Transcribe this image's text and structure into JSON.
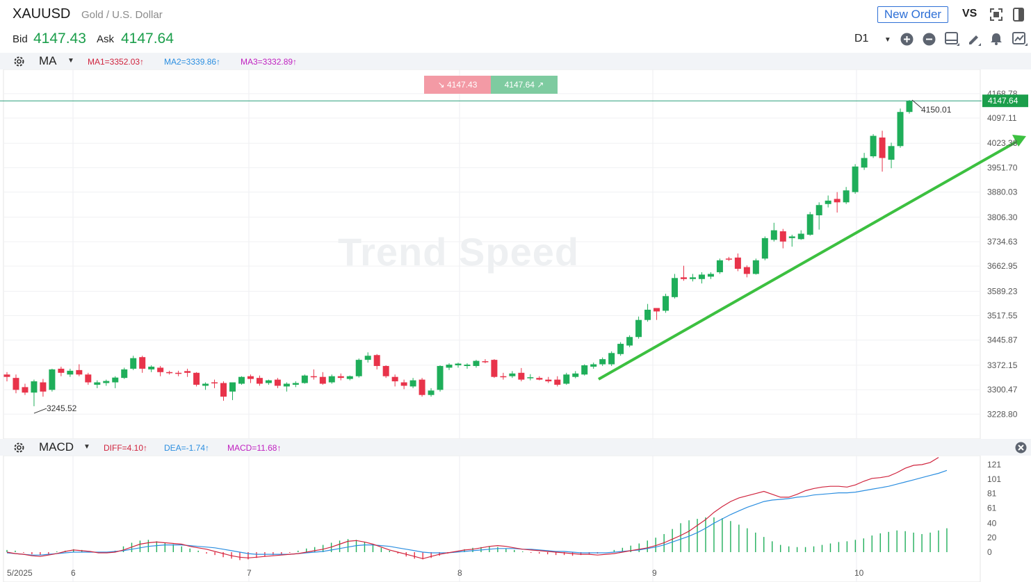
{
  "header": {
    "symbol": "XAUUSD",
    "symbol_name": "Gold / U.S. Dollar",
    "bid_label": "Bid",
    "bid_value": "4147.43",
    "ask_label": "Ask",
    "ask_value": "4147.64",
    "new_order_label": "New Order",
    "vs_label": "VS",
    "timeframe": "D1"
  },
  "ma_bar": {
    "indicator": "MA",
    "ma1": "MA1=3352.03↑",
    "ma2": "MA2=3339.86↑",
    "ma3": "MA3=3332.89↑"
  },
  "macd_bar": {
    "indicator": "MACD",
    "diff": "DIFF=4.10↑",
    "dea": "DEA=-1.74↑",
    "macd": "MACD=11.68↑"
  },
  "price_badges": {
    "sell": "4147.43",
    "buy": "4147.64",
    "sell_icon": "arrow-down-right-icon",
    "buy_icon": "arrow-up-right-icon"
  },
  "watermark": "Trend Speed",
  "colors": {
    "up": "#1fae5a",
    "down": "#e8334a",
    "accent": "#2d6fd6",
    "diff_line": "#d0233d",
    "dea_line": "#2b8ee0",
    "trend_arrow": "#3cc040"
  },
  "chart_data": [
    {
      "type": "candlestick",
      "y_axis_labels": [
        "4168.78",
        "4097.11",
        "4023.38",
        "3951.70",
        "3880.03",
        "3806.30",
        "3734.63",
        "3662.95",
        "3589.23",
        "3517.55",
        "3445.87",
        "3372.15",
        "3300.47",
        "3228.80"
      ],
      "x_axis_labels": [
        "5/2025",
        "6",
        "7",
        "8",
        "9",
        "10"
      ],
      "current_price_label": "4147.64",
      "high_marker": "4150.01",
      "low_marker": "3245.52",
      "ylim": [
        3200,
        4190
      ],
      "candles": [
        {
          "o": 3345,
          "h": 3352,
          "l": 3325,
          "c": 3338
        },
        {
          "o": 3335,
          "h": 3345,
          "l": 3290,
          "c": 3300
        },
        {
          "o": 3308,
          "h": 3318,
          "l": 3285,
          "c": 3292
        },
        {
          "o": 3292,
          "h": 3330,
          "l": 3252,
          "c": 3325
        },
        {
          "o": 3322,
          "h": 3332,
          "l": 3280,
          "c": 3295
        },
        {
          "o": 3300,
          "h": 3362,
          "l": 3295,
          "c": 3360
        },
        {
          "o": 3362,
          "h": 3368,
          "l": 3340,
          "c": 3350
        },
        {
          "o": 3345,
          "h": 3362,
          "l": 3338,
          "c": 3356
        },
        {
          "o": 3358,
          "h": 3375,
          "l": 3340,
          "c": 3345
        },
        {
          "o": 3345,
          "h": 3350,
          "l": 3315,
          "c": 3322
        },
        {
          "o": 3315,
          "h": 3328,
          "l": 3305,
          "c": 3322
        },
        {
          "o": 3320,
          "h": 3330,
          "l": 3312,
          "c": 3326
        },
        {
          "o": 3322,
          "h": 3340,
          "l": 3305,
          "c": 3336
        },
        {
          "o": 3335,
          "h": 3365,
          "l": 3332,
          "c": 3360
        },
        {
          "o": 3362,
          "h": 3400,
          "l": 3358,
          "c": 3393
        },
        {
          "o": 3396,
          "h": 3400,
          "l": 3350,
          "c": 3362
        },
        {
          "o": 3360,
          "h": 3372,
          "l": 3352,
          "c": 3368
        },
        {
          "o": 3365,
          "h": 3370,
          "l": 3340,
          "c": 3352
        },
        {
          "o": 3352,
          "h": 3356,
          "l": 3345,
          "c": 3350
        },
        {
          "o": 3350,
          "h": 3356,
          "l": 3340,
          "c": 3348
        },
        {
          "o": 3355,
          "h": 3362,
          "l": 3338,
          "c": 3350
        },
        {
          "o": 3350,
          "h": 3352,
          "l": 3310,
          "c": 3315
        },
        {
          "o": 3312,
          "h": 3322,
          "l": 3300,
          "c": 3318
        },
        {
          "o": 3322,
          "h": 3330,
          "l": 3305,
          "c": 3320
        },
        {
          "o": 3320,
          "h": 3325,
          "l": 3268,
          "c": 3280
        },
        {
          "o": 3295,
          "h": 3320,
          "l": 3270,
          "c": 3322
        },
        {
          "o": 3318,
          "h": 3340,
          "l": 3315,
          "c": 3338
        },
        {
          "o": 3340,
          "h": 3345,
          "l": 3320,
          "c": 3332
        },
        {
          "o": 3335,
          "h": 3342,
          "l": 3312,
          "c": 3318
        },
        {
          "o": 3320,
          "h": 3330,
          "l": 3315,
          "c": 3328
        },
        {
          "o": 3330,
          "h": 3335,
          "l": 3305,
          "c": 3312
        },
        {
          "o": 3310,
          "h": 3322,
          "l": 3295,
          "c": 3318
        },
        {
          "o": 3315,
          "h": 3325,
          "l": 3308,
          "c": 3320
        },
        {
          "o": 3320,
          "h": 3345,
          "l": 3318,
          "c": 3342
        },
        {
          "o": 3340,
          "h": 3360,
          "l": 3330,
          "c": 3338
        },
        {
          "o": 3338,
          "h": 3352,
          "l": 3315,
          "c": 3318
        },
        {
          "o": 3322,
          "h": 3345,
          "l": 3318,
          "c": 3340
        },
        {
          "o": 3340,
          "h": 3348,
          "l": 3328,
          "c": 3335
        },
        {
          "o": 3332,
          "h": 3342,
          "l": 3328,
          "c": 3340
        },
        {
          "o": 3340,
          "h": 3392,
          "l": 3336,
          "c": 3388
        },
        {
          "o": 3388,
          "h": 3410,
          "l": 3380,
          "c": 3400
        },
        {
          "o": 3402,
          "h": 3405,
          "l": 3360,
          "c": 3370
        },
        {
          "o": 3370,
          "h": 3372,
          "l": 3335,
          "c": 3340
        },
        {
          "o": 3338,
          "h": 3345,
          "l": 3310,
          "c": 3325
        },
        {
          "o": 3322,
          "h": 3330,
          "l": 3302,
          "c": 3312
        },
        {
          "o": 3310,
          "h": 3335,
          "l": 3305,
          "c": 3328
        },
        {
          "o": 3330,
          "h": 3335,
          "l": 3280,
          "c": 3285
        },
        {
          "o": 3285,
          "h": 3305,
          "l": 3280,
          "c": 3298
        },
        {
          "o": 3300,
          "h": 3372,
          "l": 3295,
          "c": 3370
        },
        {
          "o": 3365,
          "h": 3378,
          "l": 3358,
          "c": 3374
        },
        {
          "o": 3372,
          "h": 3380,
          "l": 3365,
          "c": 3377
        },
        {
          "o": 3370,
          "h": 3378,
          "l": 3362,
          "c": 3374
        },
        {
          "o": 3370,
          "h": 3388,
          "l": 3365,
          "c": 3385
        },
        {
          "o": 3384,
          "h": 3390,
          "l": 3378,
          "c": 3382
        },
        {
          "o": 3388,
          "h": 3390,
          "l": 3335,
          "c": 3338
        },
        {
          "o": 3340,
          "h": 3350,
          "l": 3330,
          "c": 3337
        },
        {
          "o": 3340,
          "h": 3355,
          "l": 3335,
          "c": 3348
        },
        {
          "o": 3350,
          "h": 3364,
          "l": 3325,
          "c": 3330
        },
        {
          "o": 3335,
          "h": 3346,
          "l": 3328,
          "c": 3337
        },
        {
          "o": 3335,
          "h": 3340,
          "l": 3328,
          "c": 3330
        },
        {
          "o": 3330,
          "h": 3338,
          "l": 3320,
          "c": 3325
        },
        {
          "o": 3330,
          "h": 3340,
          "l": 3310,
          "c": 3315
        },
        {
          "o": 3318,
          "h": 3350,
          "l": 3315,
          "c": 3345
        },
        {
          "o": 3338,
          "h": 3355,
          "l": 3334,
          "c": 3348
        },
        {
          "o": 3345,
          "h": 3375,
          "l": 3342,
          "c": 3372
        },
        {
          "o": 3368,
          "h": 3380,
          "l": 3362,
          "c": 3375
        },
        {
          "o": 3375,
          "h": 3395,
          "l": 3370,
          "c": 3390
        },
        {
          "o": 3375,
          "h": 3413,
          "l": 3370,
          "c": 3408
        },
        {
          "o": 3405,
          "h": 3440,
          "l": 3400,
          "c": 3435
        },
        {
          "o": 3430,
          "h": 3460,
          "l": 3425,
          "c": 3455
        },
        {
          "o": 3455,
          "h": 3515,
          "l": 3450,
          "c": 3505
        },
        {
          "o": 3505,
          "h": 3552,
          "l": 3500,
          "c": 3535
        },
        {
          "o": 3540,
          "h": 3540,
          "l": 3505,
          "c": 3530
        },
        {
          "o": 3532,
          "h": 3582,
          "l": 3526,
          "c": 3575
        },
        {
          "o": 3572,
          "h": 3640,
          "l": 3568,
          "c": 3628
        },
        {
          "o": 3630,
          "h": 3664,
          "l": 3620,
          "c": 3625
        },
        {
          "o": 3625,
          "h": 3640,
          "l": 3618,
          "c": 3630
        },
        {
          "o": 3625,
          "h": 3645,
          "l": 3612,
          "c": 3638
        },
        {
          "o": 3632,
          "h": 3645,
          "l": 3625,
          "c": 3640
        },
        {
          "o": 3645,
          "h": 3685,
          "l": 3640,
          "c": 3680
        },
        {
          "o": 3685,
          "h": 3690,
          "l": 3678,
          "c": 3682
        },
        {
          "o": 3688,
          "h": 3700,
          "l": 3648,
          "c": 3655
        },
        {
          "o": 3660,
          "h": 3665,
          "l": 3630,
          "c": 3640
        },
        {
          "o": 3640,
          "h": 3685,
          "l": 3638,
          "c": 3680
        },
        {
          "o": 3685,
          "h": 3750,
          "l": 3680,
          "c": 3745
        },
        {
          "o": 3740,
          "h": 3790,
          "l": 3735,
          "c": 3768
        },
        {
          "o": 3765,
          "h": 3772,
          "l": 3715,
          "c": 3735
        },
        {
          "o": 3745,
          "h": 3755,
          "l": 3720,
          "c": 3750
        },
        {
          "o": 3742,
          "h": 3768,
          "l": 3740,
          "c": 3758
        },
        {
          "o": 3755,
          "h": 3822,
          "l": 3752,
          "c": 3815
        },
        {
          "o": 3812,
          "h": 3850,
          "l": 3770,
          "c": 3842
        },
        {
          "o": 3845,
          "h": 3870,
          "l": 3835,
          "c": 3855
        },
        {
          "o": 3860,
          "h": 3880,
          "l": 3820,
          "c": 3850
        },
        {
          "o": 3850,
          "h": 3895,
          "l": 3845,
          "c": 3885
        },
        {
          "o": 3880,
          "h": 3962,
          "l": 3875,
          "c": 3955
        },
        {
          "o": 3952,
          "h": 3995,
          "l": 3945,
          "c": 3980
        },
        {
          "o": 3985,
          "h": 4050,
          "l": 3980,
          "c": 4045
        },
        {
          "o": 4040,
          "h": 4060,
          "l": 3940,
          "c": 3980
        },
        {
          "o": 3975,
          "h": 4025,
          "l": 3950,
          "c": 4015
        },
        {
          "o": 4015,
          "h": 4125,
          "l": 4010,
          "c": 4115
        },
        {
          "o": 4115,
          "h": 4150,
          "l": 4110,
          "c": 4147
        }
      ]
    },
    {
      "type": "line",
      "name": "MACD",
      "y_axis_labels": [
        "121",
        "101",
        "81",
        "61",
        "40",
        "20",
        "0"
      ],
      "ylim": [
        -15,
        128
      ],
      "series": [
        {
          "name": "DIFF",
          "values": [
            0,
            -2,
            -3,
            -5,
            -6,
            -4,
            -2,
            1,
            3,
            2,
            1,
            -1,
            -1,
            0,
            3,
            7,
            11,
            13,
            14,
            13,
            12,
            11,
            8,
            6,
            4,
            1,
            -2,
            -5,
            -7,
            -8,
            -7,
            -6,
            -5,
            -4,
            -3,
            -2,
            0,
            2,
            4,
            7,
            11,
            15,
            16,
            14,
            11,
            7,
            3,
            0,
            -3,
            -6,
            -9,
            -6,
            -3,
            -1,
            1,
            3,
            4,
            6,
            8,
            9,
            8,
            6,
            4,
            3,
            2,
            1,
            0,
            -1,
            -2,
            -3,
            -3,
            -4,
            -3,
            -2,
            0,
            2,
            4,
            6,
            9,
            13,
            18,
            23,
            29,
            37,
            45,
            55,
            63,
            70,
            75,
            78,
            81,
            84,
            80,
            76,
            76,
            80,
            85,
            88,
            90,
            91,
            91,
            90,
            93,
            98,
            102,
            103,
            105,
            110,
            116,
            120,
            121,
            124,
            131
          ]
        },
        {
          "name": "DEA",
          "values": [
            -1,
            -2,
            -3,
            -4,
            -4,
            -3,
            -2,
            -1,
            0,
            0,
            0,
            0,
            0,
            1,
            2,
            4,
            6,
            8,
            9,
            10,
            10,
            10,
            9,
            8,
            7,
            6,
            4,
            2,
            0,
            -2,
            -3,
            -3,
            -3,
            -3,
            -3,
            -2,
            -1,
            0,
            1,
            3,
            5,
            7,
            9,
            10,
            10,
            9,
            8,
            6,
            4,
            2,
            0,
            -1,
            -1,
            -1,
            0,
            1,
            2,
            3,
            4,
            5,
            5,
            5,
            4,
            4,
            3,
            2,
            1,
            1,
            0,
            -1,
            -1,
            -1,
            -1,
            0,
            1,
            2,
            3,
            5,
            7,
            10,
            14,
            18,
            22,
            27,
            33,
            40,
            46,
            52,
            57,
            62,
            66,
            70,
            72,
            73,
            74,
            76,
            77,
            79,
            80,
            81,
            82,
            82,
            83,
            85,
            87,
            89,
            91,
            94,
            97,
            100,
            103,
            106,
            109,
            113
          ]
        },
        {
          "name": "MACD",
          "values": [
            3,
            2,
            -1,
            -3,
            -4,
            -3,
            1,
            2,
            4,
            3,
            1,
            -1,
            0,
            2,
            8,
            13,
            16,
            17,
            15,
            13,
            11,
            8,
            5,
            2,
            -2,
            -4,
            -7,
            -9,
            -11,
            -10,
            -8,
            -6,
            -4,
            -3,
            -1,
            2,
            5,
            7,
            10,
            13,
            16,
            18,
            17,
            14,
            10,
            6,
            2,
            -2,
            -6,
            -9,
            -10,
            -8,
            -5,
            -2,
            1,
            4,
            6,
            7,
            8,
            7,
            5,
            3,
            1,
            -1,
            -2,
            -3,
            -4,
            -4,
            -5,
            -4,
            -3,
            -2,
            0,
            3,
            6,
            9,
            12,
            16,
            20,
            25,
            32,
            40,
            44,
            46,
            48,
            48,
            47,
            43,
            38,
            33,
            27,
            21,
            15,
            10,
            8,
            7,
            7,
            8,
            10,
            12,
            14,
            15,
            17,
            19,
            23,
            26,
            28,
            30,
            29,
            27,
            25,
            27,
            30,
            33
          ]
        }
      ]
    }
  ]
}
